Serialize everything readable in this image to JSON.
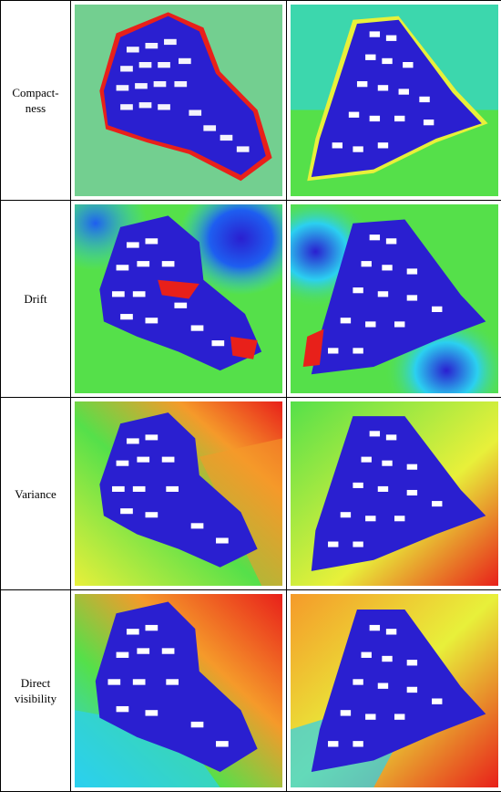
{
  "rows": [
    {
      "label_lines": [
        "Compact-",
        "ness"
      ]
    },
    {
      "label_lines": [
        "Drift"
      ]
    },
    {
      "label_lines": [
        "Variance"
      ]
    },
    {
      "label_lines": [
        "Direct",
        "visibility"
      ]
    }
  ],
  "colors": {
    "deep_blue": "#2a1fd0",
    "blue": "#1e5ef0",
    "cyan": "#2bd0f0",
    "green": "#55e04a",
    "yellow": "#e8f03a",
    "orange": "#f59a2a",
    "red": "#e8201a",
    "building": "#ffffff"
  }
}
